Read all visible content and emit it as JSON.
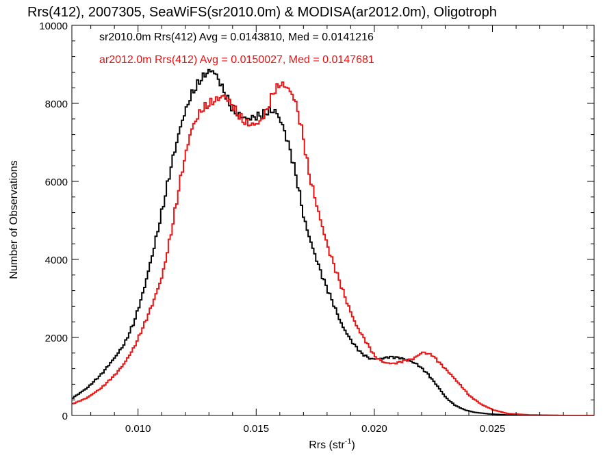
{
  "chart_data": {
    "type": "line",
    "title": "Rrs(412), 2007305, SeaWiFS(sr2010.0m) & MODISA(ar2012.0m), Oligotroph",
    "xlabel": "Rrs (str",
    "xlabel_sup": "-1",
    "xlabel_close": ")",
    "ylabel": "Number of Observations",
    "xlim": [
      0.0072,
      0.0293
    ],
    "ylim": [
      0,
      10000
    ],
    "x_ticks": [
      0.01,
      0.015,
      0.02,
      0.025
    ],
    "x_tick_labels": [
      "0.010",
      "0.015",
      "0.020",
      "0.025"
    ],
    "y_ticks": [
      0,
      2000,
      4000,
      6000,
      8000,
      10000
    ],
    "y_tick_labels": [
      "0",
      "2000",
      "4000",
      "6000",
      "8000",
      "10000"
    ],
    "grid": false,
    "legend_position": "top-left",
    "series": [
      {
        "name": "sr2010.0m Rrs(412) Avg = 0.0143810, Med = 0.0141216",
        "color": "#000000",
        "x": [
          0.0072,
          0.0078,
          0.0084,
          0.009,
          0.0094,
          0.0098,
          0.0102,
          0.0106,
          0.011,
          0.0114,
          0.0118,
          0.0122,
          0.0126,
          0.0129,
          0.0131,
          0.0133,
          0.0136,
          0.0139,
          0.0142,
          0.0146,
          0.0149,
          0.0152,
          0.0155,
          0.0158,
          0.0161,
          0.0164,
          0.0167,
          0.017,
          0.0174,
          0.0178,
          0.0182,
          0.0186,
          0.019,
          0.0194,
          0.0198,
          0.0202,
          0.0206,
          0.021,
          0.0214,
          0.0218,
          0.0222,
          0.0226,
          0.023,
          0.0234,
          0.0238,
          0.0242,
          0.0248,
          0.0255,
          0.0265,
          0.028,
          0.0293
        ],
        "y": [
          450,
          700,
          1050,
          1500,
          1850,
          2400,
          3200,
          4200,
          5300,
          6500,
          7500,
          8200,
          8600,
          8800,
          8850,
          8700,
          8300,
          7900,
          7700,
          7600,
          7650,
          7700,
          7800,
          7800,
          7400,
          6800,
          6000,
          5000,
          4200,
          3500,
          2900,
          2300,
          1900,
          1600,
          1450,
          1450,
          1500,
          1480,
          1420,
          1300,
          1080,
          780,
          450,
          250,
          140,
          80,
          40,
          15,
          5,
          0,
          0
        ]
      },
      {
        "name": "ar2012.0m Rrs(412) Avg = 0.0150027, Med = 0.0147681",
        "color": "#ee1111",
        "x": [
          0.0072,
          0.0078,
          0.0084,
          0.009,
          0.0094,
          0.0098,
          0.0102,
          0.0106,
          0.011,
          0.0114,
          0.0118,
          0.0122,
          0.0126,
          0.013,
          0.0133,
          0.0136,
          0.0139,
          0.0142,
          0.0145,
          0.0148,
          0.0151,
          0.0154,
          0.0157,
          0.016,
          0.0163,
          0.0166,
          0.0169,
          0.0172,
          0.0176,
          0.018,
          0.0184,
          0.0188,
          0.0192,
          0.0196,
          0.02,
          0.0204,
          0.0208,
          0.0212,
          0.0216,
          0.022,
          0.0224,
          0.0228,
          0.0232,
          0.0236,
          0.024,
          0.0245,
          0.025,
          0.0256,
          0.0265,
          0.028,
          0.0293
        ],
        "y": [
          300,
          450,
          700,
          1050,
          1350,
          1750,
          2300,
          2900,
          3600,
          4800,
          6200,
          7300,
          7800,
          8000,
          8100,
          8200,
          8000,
          7700,
          7500,
          7450,
          7500,
          7800,
          8300,
          8500,
          8400,
          8100,
          7300,
          6200,
          5200,
          4300,
          3600,
          2900,
          2300,
          1900,
          1500,
          1350,
          1330,
          1400,
          1450,
          1620,
          1550,
          1300,
          1050,
          780,
          500,
          280,
          140,
          50,
          15,
          0,
          0
        ]
      }
    ]
  }
}
